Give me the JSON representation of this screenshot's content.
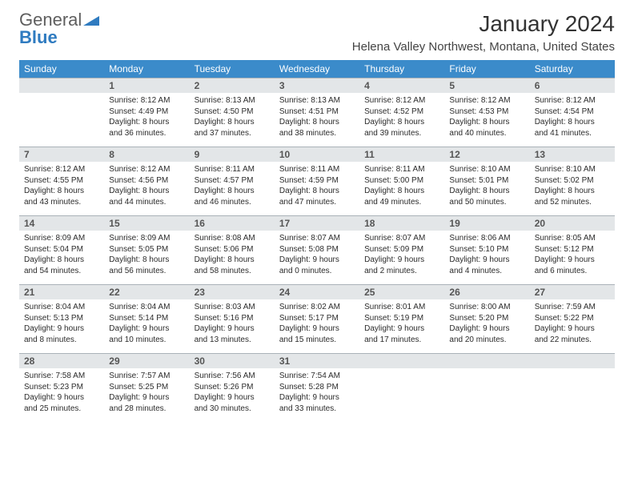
{
  "brand": {
    "part1": "General",
    "part2": "Blue"
  },
  "title": "January 2024",
  "location": "Helena Valley Northwest, Montana, United States",
  "colors": {
    "header_bg": "#3b8bca",
    "header_text": "#ffffff",
    "daynum_bg": "#e3e6e8",
    "border": "#aab2b8",
    "brand_gray": "#5e5e5e",
    "brand_blue": "#2f7bc0"
  },
  "weekdays": [
    "Sunday",
    "Monday",
    "Tuesday",
    "Wednesday",
    "Thursday",
    "Friday",
    "Saturday"
  ],
  "grid": [
    [
      null,
      {
        "n": "1",
        "sr": "Sunrise: 8:12 AM",
        "ss": "Sunset: 4:49 PM",
        "d1": "Daylight: 8 hours",
        "d2": "and 36 minutes."
      },
      {
        "n": "2",
        "sr": "Sunrise: 8:13 AM",
        "ss": "Sunset: 4:50 PM",
        "d1": "Daylight: 8 hours",
        "d2": "and 37 minutes."
      },
      {
        "n": "3",
        "sr": "Sunrise: 8:13 AM",
        "ss": "Sunset: 4:51 PM",
        "d1": "Daylight: 8 hours",
        "d2": "and 38 minutes."
      },
      {
        "n": "4",
        "sr": "Sunrise: 8:12 AM",
        "ss": "Sunset: 4:52 PM",
        "d1": "Daylight: 8 hours",
        "d2": "and 39 minutes."
      },
      {
        "n": "5",
        "sr": "Sunrise: 8:12 AM",
        "ss": "Sunset: 4:53 PM",
        "d1": "Daylight: 8 hours",
        "d2": "and 40 minutes."
      },
      {
        "n": "6",
        "sr": "Sunrise: 8:12 AM",
        "ss": "Sunset: 4:54 PM",
        "d1": "Daylight: 8 hours",
        "d2": "and 41 minutes."
      }
    ],
    [
      {
        "n": "7",
        "sr": "Sunrise: 8:12 AM",
        "ss": "Sunset: 4:55 PM",
        "d1": "Daylight: 8 hours",
        "d2": "and 43 minutes."
      },
      {
        "n": "8",
        "sr": "Sunrise: 8:12 AM",
        "ss": "Sunset: 4:56 PM",
        "d1": "Daylight: 8 hours",
        "d2": "and 44 minutes."
      },
      {
        "n": "9",
        "sr": "Sunrise: 8:11 AM",
        "ss": "Sunset: 4:57 PM",
        "d1": "Daylight: 8 hours",
        "d2": "and 46 minutes."
      },
      {
        "n": "10",
        "sr": "Sunrise: 8:11 AM",
        "ss": "Sunset: 4:59 PM",
        "d1": "Daylight: 8 hours",
        "d2": "and 47 minutes."
      },
      {
        "n": "11",
        "sr": "Sunrise: 8:11 AM",
        "ss": "Sunset: 5:00 PM",
        "d1": "Daylight: 8 hours",
        "d2": "and 49 minutes."
      },
      {
        "n": "12",
        "sr": "Sunrise: 8:10 AM",
        "ss": "Sunset: 5:01 PM",
        "d1": "Daylight: 8 hours",
        "d2": "and 50 minutes."
      },
      {
        "n": "13",
        "sr": "Sunrise: 8:10 AM",
        "ss": "Sunset: 5:02 PM",
        "d1": "Daylight: 8 hours",
        "d2": "and 52 minutes."
      }
    ],
    [
      {
        "n": "14",
        "sr": "Sunrise: 8:09 AM",
        "ss": "Sunset: 5:04 PM",
        "d1": "Daylight: 8 hours",
        "d2": "and 54 minutes."
      },
      {
        "n": "15",
        "sr": "Sunrise: 8:09 AM",
        "ss": "Sunset: 5:05 PM",
        "d1": "Daylight: 8 hours",
        "d2": "and 56 minutes."
      },
      {
        "n": "16",
        "sr": "Sunrise: 8:08 AM",
        "ss": "Sunset: 5:06 PM",
        "d1": "Daylight: 8 hours",
        "d2": "and 58 minutes."
      },
      {
        "n": "17",
        "sr": "Sunrise: 8:07 AM",
        "ss": "Sunset: 5:08 PM",
        "d1": "Daylight: 9 hours",
        "d2": "and 0 minutes."
      },
      {
        "n": "18",
        "sr": "Sunrise: 8:07 AM",
        "ss": "Sunset: 5:09 PM",
        "d1": "Daylight: 9 hours",
        "d2": "and 2 minutes."
      },
      {
        "n": "19",
        "sr": "Sunrise: 8:06 AM",
        "ss": "Sunset: 5:10 PM",
        "d1": "Daylight: 9 hours",
        "d2": "and 4 minutes."
      },
      {
        "n": "20",
        "sr": "Sunrise: 8:05 AM",
        "ss": "Sunset: 5:12 PM",
        "d1": "Daylight: 9 hours",
        "d2": "and 6 minutes."
      }
    ],
    [
      {
        "n": "21",
        "sr": "Sunrise: 8:04 AM",
        "ss": "Sunset: 5:13 PM",
        "d1": "Daylight: 9 hours",
        "d2": "and 8 minutes."
      },
      {
        "n": "22",
        "sr": "Sunrise: 8:04 AM",
        "ss": "Sunset: 5:14 PM",
        "d1": "Daylight: 9 hours",
        "d2": "and 10 minutes."
      },
      {
        "n": "23",
        "sr": "Sunrise: 8:03 AM",
        "ss": "Sunset: 5:16 PM",
        "d1": "Daylight: 9 hours",
        "d2": "and 13 minutes."
      },
      {
        "n": "24",
        "sr": "Sunrise: 8:02 AM",
        "ss": "Sunset: 5:17 PM",
        "d1": "Daylight: 9 hours",
        "d2": "and 15 minutes."
      },
      {
        "n": "25",
        "sr": "Sunrise: 8:01 AM",
        "ss": "Sunset: 5:19 PM",
        "d1": "Daylight: 9 hours",
        "d2": "and 17 minutes."
      },
      {
        "n": "26",
        "sr": "Sunrise: 8:00 AM",
        "ss": "Sunset: 5:20 PM",
        "d1": "Daylight: 9 hours",
        "d2": "and 20 minutes."
      },
      {
        "n": "27",
        "sr": "Sunrise: 7:59 AM",
        "ss": "Sunset: 5:22 PM",
        "d1": "Daylight: 9 hours",
        "d2": "and 22 minutes."
      }
    ],
    [
      {
        "n": "28",
        "sr": "Sunrise: 7:58 AM",
        "ss": "Sunset: 5:23 PM",
        "d1": "Daylight: 9 hours",
        "d2": "and 25 minutes."
      },
      {
        "n": "29",
        "sr": "Sunrise: 7:57 AM",
        "ss": "Sunset: 5:25 PM",
        "d1": "Daylight: 9 hours",
        "d2": "and 28 minutes."
      },
      {
        "n": "30",
        "sr": "Sunrise: 7:56 AM",
        "ss": "Sunset: 5:26 PM",
        "d1": "Daylight: 9 hours",
        "d2": "and 30 minutes."
      },
      {
        "n": "31",
        "sr": "Sunrise: 7:54 AM",
        "ss": "Sunset: 5:28 PM",
        "d1": "Daylight: 9 hours",
        "d2": "and 33 minutes."
      },
      null,
      null,
      null
    ]
  ]
}
